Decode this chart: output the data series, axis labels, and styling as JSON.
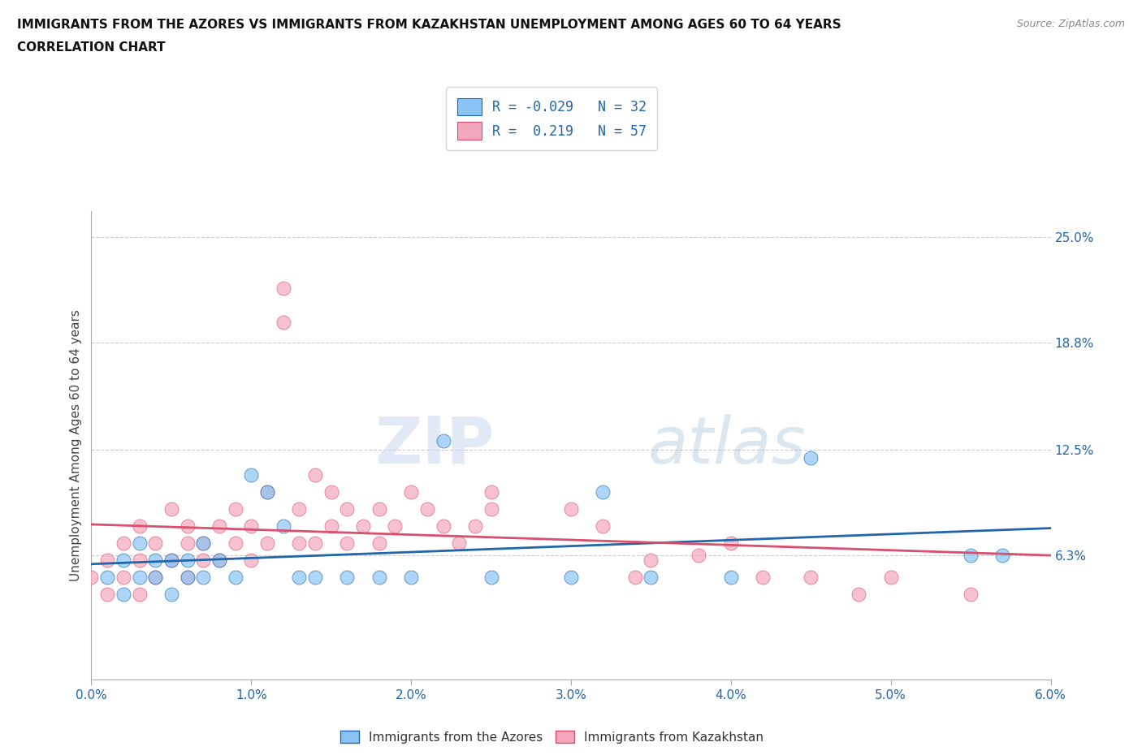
{
  "title_line1": "IMMIGRANTS FROM THE AZORES VS IMMIGRANTS FROM KAZAKHSTAN UNEMPLOYMENT AMONG AGES 60 TO 64 YEARS",
  "title_line2": "CORRELATION CHART",
  "source_text": "Source: ZipAtlas.com",
  "ylabel": "Unemployment Among Ages 60 to 64 years",
  "xlim": [
    0.0,
    0.06
  ],
  "ylim": [
    -0.01,
    0.265
  ],
  "xtick_labels": [
    "0.0%",
    "1.0%",
    "2.0%",
    "3.0%",
    "4.0%",
    "5.0%",
    "6.0%"
  ],
  "xtick_vals": [
    0.0,
    0.01,
    0.02,
    0.03,
    0.04,
    0.05,
    0.06
  ],
  "ytick_labels": [
    "6.3%",
    "12.5%",
    "18.8%",
    "25.0%"
  ],
  "ytick_vals": [
    0.063,
    0.125,
    0.188,
    0.25
  ],
  "color_azores": "#89C4F4",
  "color_kazakhstan": "#F4A7BB",
  "trendline_azores": "#2166AC",
  "trendline_kazakhstan": "#D94F6E",
  "background_color": "#FFFFFF",
  "grid_color": "#CCCCCC",
  "watermark_zip": "ZIP",
  "watermark_atlas": "atlas",
  "legend_r_azores": "R = -0.029",
  "legend_n_azores": "N = 32",
  "legend_r_kazakhstan": "R =  0.219",
  "legend_n_kazakhstan": "N = 57",
  "azores_x": [
    0.001,
    0.002,
    0.002,
    0.003,
    0.003,
    0.004,
    0.004,
    0.005,
    0.005,
    0.006,
    0.006,
    0.007,
    0.007,
    0.008,
    0.009,
    0.01,
    0.011,
    0.012,
    0.013,
    0.014,
    0.016,
    0.018,
    0.02,
    0.022,
    0.025,
    0.03,
    0.032,
    0.035,
    0.04,
    0.045,
    0.055,
    0.057
  ],
  "azores_y": [
    0.05,
    0.04,
    0.06,
    0.05,
    0.07,
    0.05,
    0.06,
    0.06,
    0.04,
    0.05,
    0.06,
    0.05,
    0.07,
    0.06,
    0.05,
    0.11,
    0.1,
    0.08,
    0.05,
    0.05,
    0.05,
    0.05,
    0.05,
    0.13,
    0.05,
    0.05,
    0.1,
    0.05,
    0.05,
    0.12,
    0.063,
    0.063
  ],
  "kazakhstan_x": [
    0.0,
    0.001,
    0.001,
    0.002,
    0.002,
    0.003,
    0.003,
    0.003,
    0.004,
    0.004,
    0.005,
    0.005,
    0.006,
    0.006,
    0.006,
    0.007,
    0.007,
    0.008,
    0.008,
    0.009,
    0.009,
    0.01,
    0.01,
    0.011,
    0.011,
    0.012,
    0.012,
    0.013,
    0.013,
    0.014,
    0.014,
    0.015,
    0.015,
    0.016,
    0.016,
    0.017,
    0.018,
    0.018,
    0.019,
    0.02,
    0.021,
    0.022,
    0.023,
    0.024,
    0.025,
    0.025,
    0.03,
    0.032,
    0.034,
    0.035,
    0.038,
    0.04,
    0.042,
    0.045,
    0.048,
    0.05,
    0.055
  ],
  "kazakhstan_y": [
    0.05,
    0.06,
    0.04,
    0.07,
    0.05,
    0.06,
    0.08,
    0.04,
    0.07,
    0.05,
    0.06,
    0.09,
    0.07,
    0.05,
    0.08,
    0.07,
    0.06,
    0.08,
    0.06,
    0.07,
    0.09,
    0.08,
    0.06,
    0.07,
    0.1,
    0.22,
    0.2,
    0.09,
    0.07,
    0.11,
    0.07,
    0.08,
    0.1,
    0.07,
    0.09,
    0.08,
    0.09,
    0.07,
    0.08,
    0.1,
    0.09,
    0.08,
    0.07,
    0.08,
    0.09,
    0.1,
    0.09,
    0.08,
    0.05,
    0.06,
    0.063,
    0.07,
    0.05,
    0.05,
    0.04,
    0.05,
    0.04
  ]
}
